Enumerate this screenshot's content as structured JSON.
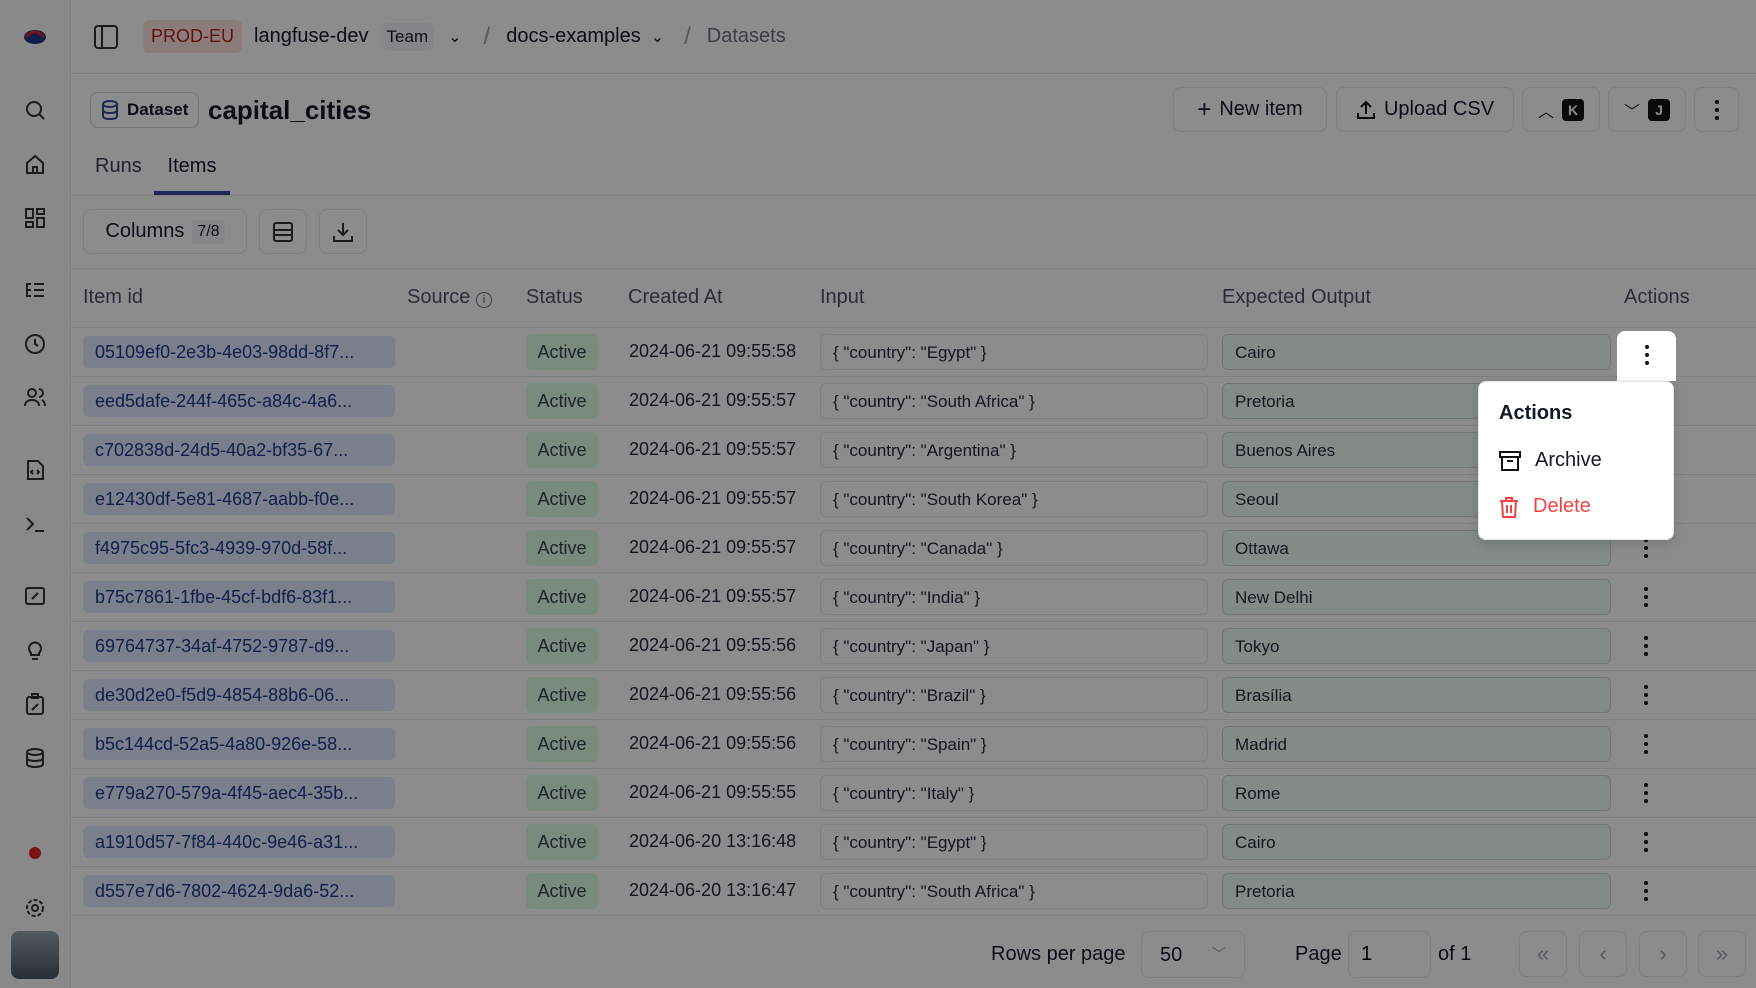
{
  "topbar": {
    "env": "PROD-EU",
    "org": "langfuse-dev",
    "org_badge": "Team",
    "project": "docs-examples",
    "page": "Datasets"
  },
  "header": {
    "badge": "Dataset",
    "title": "capital_cities",
    "new_item": "New item",
    "upload_csv": "Upload CSV",
    "prev_key": "K",
    "next_key": "J"
  },
  "tabs": [
    {
      "label": "Runs",
      "active": false
    },
    {
      "label": "Items",
      "active": true
    }
  ],
  "toolbar": {
    "columns_label": "Columns",
    "columns_count": "7/8"
  },
  "table": {
    "headers": {
      "item_id": "Item id",
      "source": "Source",
      "status": "Status",
      "created_at": "Created At",
      "input": "Input",
      "expected_output": "Expected Output",
      "actions": "Actions"
    },
    "rows": [
      {
        "id": "05109ef0-2e3b-4e03-98dd-8f7...",
        "status": "Active",
        "created": "2024-06-21 09:55:58",
        "input": "{ \"country\": \"Egypt\" }",
        "output": "Cairo"
      },
      {
        "id": "eed5dafe-244f-465c-a84c-4a6...",
        "status": "Active",
        "created": "2024-06-21 09:55:57",
        "input": "{ \"country\": \"South Africa\" }",
        "output": "Pretoria"
      },
      {
        "id": "c702838d-24d5-40a2-bf35-67...",
        "status": "Active",
        "created": "2024-06-21 09:55:57",
        "input": "{ \"country\": \"Argentina\" }",
        "output": "Buenos Aires"
      },
      {
        "id": "e12430df-5e81-4687-aabb-f0e...",
        "status": "Active",
        "created": "2024-06-21 09:55:57",
        "input": "{ \"country\": \"South Korea\" }",
        "output": "Seoul"
      },
      {
        "id": "f4975c95-5fc3-4939-970d-58f...",
        "status": "Active",
        "created": "2024-06-21 09:55:57",
        "input": "{ \"country\": \"Canada\" }",
        "output": "Ottawa"
      },
      {
        "id": "b75c7861-1fbe-45cf-bdf6-83f1...",
        "status": "Active",
        "created": "2024-06-21 09:55:57",
        "input": "{ \"country\": \"India\" }",
        "output": "New Delhi"
      },
      {
        "id": "69764737-34af-4752-9787-d9...",
        "status": "Active",
        "created": "2024-06-21 09:55:56",
        "input": "{ \"country\": \"Japan\" }",
        "output": "Tokyo"
      },
      {
        "id": "de30d2e0-f5d9-4854-88b6-06...",
        "status": "Active",
        "created": "2024-06-21 09:55:56",
        "input": "{ \"country\": \"Brazil\" }",
        "output": "Brasília"
      },
      {
        "id": "b5c144cd-52a5-4a80-926e-58...",
        "status": "Active",
        "created": "2024-06-21 09:55:56",
        "input": "{ \"country\": \"Spain\" }",
        "output": "Madrid"
      },
      {
        "id": "e779a270-579a-4f45-aec4-35b...",
        "status": "Active",
        "created": "2024-06-21 09:55:55",
        "input": "{ \"country\": \"Italy\" }",
        "output": "Rome"
      },
      {
        "id": "a1910d57-7f84-440c-9e46-a31...",
        "status": "Active",
        "created": "2024-06-20 13:16:48",
        "input": "{ \"country\": \"Egypt\" }",
        "output": "Cairo"
      },
      {
        "id": "d557e7d6-7802-4624-9da6-52...",
        "status": "Active",
        "created": "2024-06-20 13:16:47",
        "input": "{ \"country\": \"South Africa\" }",
        "output": "Pretoria"
      }
    ]
  },
  "menu": {
    "title": "Actions",
    "archive": "Archive",
    "delete": "Delete"
  },
  "pagination": {
    "rows_per_page_label": "Rows per page",
    "rows_per_page": "50",
    "page_label": "Page",
    "page": "1",
    "of_label": "of 1"
  },
  "colors": {
    "accent": "#3b4a9c",
    "env_badge": "#fee2e2",
    "env_text": "#b91c1c",
    "delete": "#ef4444",
    "id_pill": "#e0e7ff",
    "status_pill": "#dcfce7"
  }
}
